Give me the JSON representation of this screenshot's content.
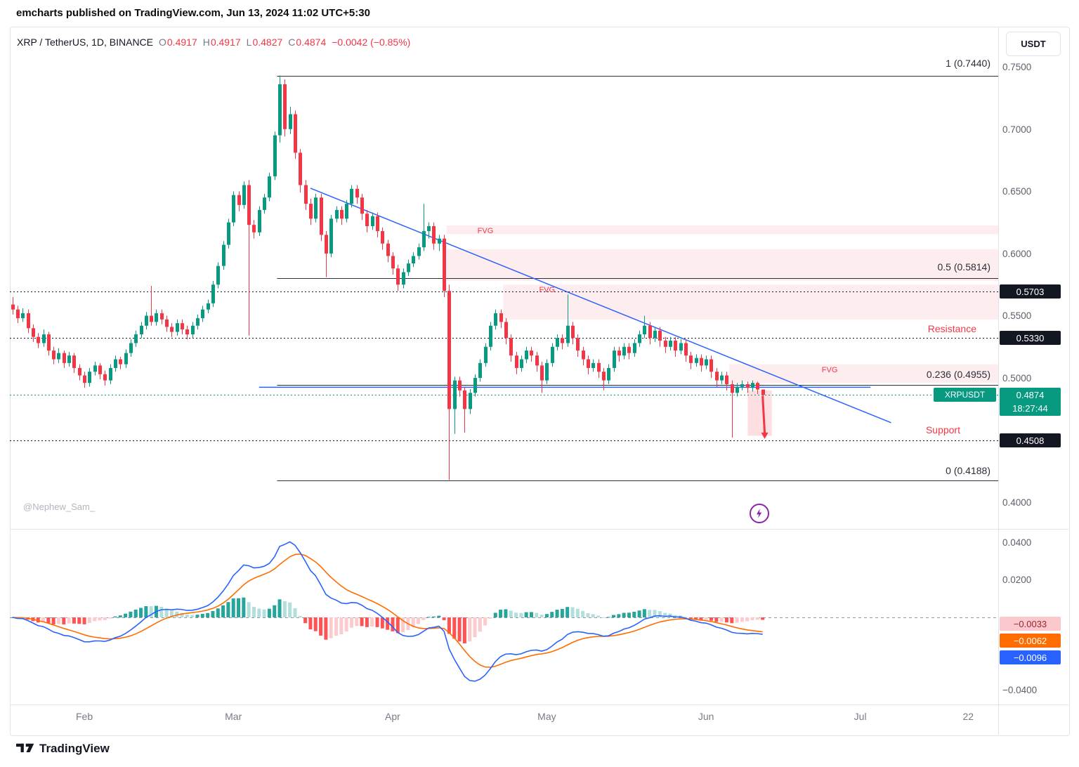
{
  "header": {
    "title": "emcharts published on TradingView.com, Jun 13, 2024 11:02 UTC+5:30"
  },
  "toolbar": {
    "symbol": "XRP / TetherUS, 1D, BINANCE",
    "ohlc": {
      "o_label": "O",
      "o": "0.4917",
      "h_label": "H",
      "h": "0.4917",
      "l_label": "L",
      "l": "0.4827",
      "c_label": "C",
      "c": "0.4874",
      "change": "−0.0042 (−0.85%)"
    },
    "currency_button": "USDT"
  },
  "price_axis": {
    "ticks": [
      {
        "label": "0.7500",
        "value": 0.75
      },
      {
        "label": "0.7000",
        "value": 0.7
      },
      {
        "label": "0.6500",
        "value": 0.65
      },
      {
        "label": "0.6000",
        "value": 0.6
      },
      {
        "label": "0.5500",
        "value": 0.55
      },
      {
        "label": "0.5000",
        "value": 0.5
      },
      {
        "label": "0.4000",
        "value": 0.4
      }
    ],
    "badges": [
      {
        "label": "0.5703",
        "value": 0.5703
      },
      {
        "label": "0.5330",
        "value": 0.533
      },
      {
        "label": "0.4508",
        "value": 0.4508
      }
    ],
    "last_price": {
      "symbol_tag": "XRPUSDT",
      "price": "0.4874",
      "countdown": "18:27:44"
    }
  },
  "macd_axis": {
    "ticks": [
      {
        "label": "0.0400",
        "value": 0.04
      },
      {
        "label": "0.0200",
        "value": 0.02
      },
      {
        "label": "−0.0400",
        "value": -0.04
      }
    ],
    "badges": {
      "hist": "−0.0033",
      "signal": "−0.0062",
      "macd": "−0.0096"
    }
  },
  "time_axis": {
    "labels": [
      {
        "text": "Feb",
        "index": 14
      },
      {
        "text": "Mar",
        "index": 43
      },
      {
        "text": "Apr",
        "index": 74
      },
      {
        "text": "May",
        "index": 104
      },
      {
        "text": "Jun",
        "index": 135
      },
      {
        "text": "Jul",
        "index": 165
      },
      {
        "text": "22",
        "index": 186
      }
    ]
  },
  "annotations": {
    "fib": [
      {
        "label": "1 (0.7440)",
        "price": 0.744
      },
      {
        "label": "0.5 (0.5814)",
        "price": 0.5814
      },
      {
        "label": "0.236 (0.4955)",
        "price": 0.4955
      },
      {
        "label": "0 (0.4188)",
        "price": 0.4188
      }
    ],
    "resistance": "Resistance",
    "support": "Support",
    "watermark": "@Nephew_Sam_"
  },
  "footer": {
    "logo_text": "TradingView"
  },
  "colors": {
    "up": "#089981",
    "down": "#f23645",
    "macd_line": "#2962ff",
    "signal_line": "#ff6d00",
    "hist_pos_strong": "#26a69a",
    "hist_pos_weak": "#b2dfdb",
    "hist_neg_strong": "#ff5252",
    "hist_neg_weak": "#fccbcd",
    "fvg_fill": "rgba(242,54,69,0.09)",
    "drop_zone_fill": "rgba(242,54,69,0.16)",
    "fib_line": "#2a2e39",
    "dotted_line": "#131722",
    "trend_line": "#2962ff",
    "zero_line": "#9598a1",
    "current_line": "#089981"
  },
  "chart_data": {
    "type": "candlestick",
    "symbol": "XRP/TetherUS",
    "exchange": "BINANCE",
    "interval": "1D",
    "price_range_visible": [
      0.38,
      0.757
    ],
    "macd_range_visible": [
      -0.046,
      0.046
    ],
    "candles": [
      [
        0.56,
        0.566,
        0.552,
        0.556
      ],
      [
        0.556,
        0.559,
        0.545,
        0.549
      ],
      [
        0.549,
        0.557,
        0.546,
        0.553
      ],
      [
        0.553,
        0.556,
        0.537,
        0.541
      ],
      [
        0.541,
        0.544,
        0.53,
        0.534
      ],
      [
        0.534,
        0.537,
        0.525,
        0.529
      ],
      [
        0.529,
        0.54,
        0.526,
        0.536
      ],
      [
        0.536,
        0.538,
        0.519,
        0.523
      ],
      [
        0.523,
        0.526,
        0.512,
        0.516
      ],
      [
        0.516,
        0.525,
        0.513,
        0.521
      ],
      [
        0.521,
        0.523,
        0.509,
        0.513
      ],
      [
        0.513,
        0.522,
        0.51,
        0.519
      ],
      [
        0.519,
        0.521,
        0.505,
        0.509
      ],
      [
        0.509,
        0.512,
        0.499,
        0.503
      ],
      [
        0.503,
        0.506,
        0.493,
        0.497
      ],
      [
        0.497,
        0.509,
        0.494,
        0.506
      ],
      [
        0.506,
        0.514,
        0.503,
        0.511
      ],
      [
        0.511,
        0.513,
        0.5,
        0.504
      ],
      [
        0.504,
        0.507,
        0.495,
        0.499
      ],
      [
        0.499,
        0.512,
        0.496,
        0.509
      ],
      [
        0.509,
        0.519,
        0.506,
        0.516
      ],
      [
        0.516,
        0.518,
        0.508,
        0.512
      ],
      [
        0.512,
        0.524,
        0.509,
        0.521
      ],
      [
        0.521,
        0.532,
        0.518,
        0.529
      ],
      [
        0.529,
        0.539,
        0.526,
        0.536
      ],
      [
        0.536,
        0.546,
        0.533,
        0.543
      ],
      [
        0.543,
        0.554,
        0.54,
        0.551
      ],
      [
        0.551,
        0.575,
        0.543,
        0.546
      ],
      [
        0.546,
        0.556,
        0.543,
        0.553
      ],
      [
        0.553,
        0.556,
        0.544,
        0.548
      ],
      [
        0.548,
        0.551,
        0.538,
        0.542
      ],
      [
        0.542,
        0.545,
        0.534,
        0.538
      ],
      [
        0.538,
        0.548,
        0.535,
        0.545
      ],
      [
        0.545,
        0.548,
        0.536,
        0.54
      ],
      [
        0.54,
        0.543,
        0.532,
        0.536
      ],
      [
        0.536,
        0.546,
        0.533,
        0.543
      ],
      [
        0.543,
        0.552,
        0.54,
        0.549
      ],
      [
        0.549,
        0.559,
        0.546,
        0.556
      ],
      [
        0.556,
        0.564,
        0.553,
        0.561
      ],
      [
        0.561,
        0.579,
        0.558,
        0.576
      ],
      [
        0.576,
        0.594,
        0.573,
        0.591
      ],
      [
        0.591,
        0.611,
        0.588,
        0.608
      ],
      [
        0.608,
        0.629,
        0.605,
        0.626
      ],
      [
        0.626,
        0.651,
        0.623,
        0.648
      ],
      [
        0.648,
        0.651,
        0.635,
        0.64
      ],
      [
        0.64,
        0.659,
        0.637,
        0.656
      ],
      [
        0.656,
        0.66,
        0.535,
        0.624
      ],
      [
        0.624,
        0.628,
        0.613,
        0.618
      ],
      [
        0.618,
        0.639,
        0.615,
        0.636
      ],
      [
        0.636,
        0.649,
        0.633,
        0.646
      ],
      [
        0.646,
        0.666,
        0.643,
        0.663
      ],
      [
        0.663,
        0.699,
        0.66,
        0.696
      ],
      [
        0.696,
        0.744,
        0.69,
        0.737
      ],
      [
        0.737,
        0.741,
        0.695,
        0.701
      ],
      [
        0.701,
        0.719,
        0.697,
        0.713
      ],
      [
        0.713,
        0.716,
        0.677,
        0.682
      ],
      [
        0.682,
        0.685,
        0.65,
        0.656
      ],
      [
        0.656,
        0.66,
        0.636,
        0.641
      ],
      [
        0.641,
        0.645,
        0.624,
        0.629
      ],
      [
        0.629,
        0.649,
        0.626,
        0.646
      ],
      [
        0.646,
        0.649,
        0.611,
        0.616
      ],
      [
        0.616,
        0.619,
        0.582,
        0.601
      ],
      [
        0.601,
        0.632,
        0.598,
        0.629
      ],
      [
        0.629,
        0.639,
        0.626,
        0.636
      ],
      [
        0.636,
        0.639,
        0.624,
        0.629
      ],
      [
        0.629,
        0.644,
        0.626,
        0.641
      ],
      [
        0.641,
        0.656,
        0.638,
        0.653
      ],
      [
        0.653,
        0.656,
        0.641,
        0.646
      ],
      [
        0.646,
        0.649,
        0.628,
        0.633
      ],
      [
        0.633,
        0.636,
        0.618,
        0.623
      ],
      [
        0.623,
        0.634,
        0.62,
        0.631
      ],
      [
        0.631,
        0.634,
        0.614,
        0.619
      ],
      [
        0.619,
        0.622,
        0.604,
        0.609
      ],
      [
        0.609,
        0.612,
        0.594,
        0.599
      ],
      [
        0.599,
        0.602,
        0.584,
        0.589
      ],
      [
        0.589,
        0.592,
        0.571,
        0.576
      ],
      [
        0.576,
        0.589,
        0.573,
        0.586
      ],
      [
        0.586,
        0.596,
        0.583,
        0.593
      ],
      [
        0.593,
        0.602,
        0.59,
        0.599
      ],
      [
        0.599,
        0.609,
        0.596,
        0.606
      ],
      [
        0.606,
        0.641,
        0.603,
        0.619
      ],
      [
        0.619,
        0.626,
        0.613,
        0.623
      ],
      [
        0.623,
        0.626,
        0.604,
        0.609
      ],
      [
        0.609,
        0.616,
        0.603,
        0.613
      ],
      [
        0.613,
        0.616,
        0.566,
        0.571
      ],
      [
        0.571,
        0.576,
        0.419,
        0.476
      ],
      [
        0.476,
        0.502,
        0.456,
        0.499
      ],
      [
        0.499,
        0.502,
        0.486,
        0.491
      ],
      [
        0.491,
        0.494,
        0.457,
        0.476
      ],
      [
        0.476,
        0.492,
        0.472,
        0.489
      ],
      [
        0.489,
        0.504,
        0.486,
        0.501
      ],
      [
        0.501,
        0.516,
        0.498,
        0.513
      ],
      [
        0.513,
        0.529,
        0.51,
        0.526
      ],
      [
        0.526,
        0.546,
        0.523,
        0.543
      ],
      [
        0.543,
        0.556,
        0.54,
        0.553
      ],
      [
        0.553,
        0.556,
        0.541,
        0.546
      ],
      [
        0.546,
        0.549,
        0.528,
        0.533
      ],
      [
        0.533,
        0.536,
        0.514,
        0.519
      ],
      [
        0.519,
        0.522,
        0.504,
        0.509
      ],
      [
        0.509,
        0.519,
        0.506,
        0.516
      ],
      [
        0.516,
        0.526,
        0.513,
        0.523
      ],
      [
        0.523,
        0.526,
        0.514,
        0.519
      ],
      [
        0.519,
        0.522,
        0.506,
        0.511
      ],
      [
        0.511,
        0.514,
        0.489,
        0.499
      ],
      [
        0.499,
        0.516,
        0.496,
        0.513
      ],
      [
        0.513,
        0.529,
        0.51,
        0.526
      ],
      [
        0.526,
        0.536,
        0.523,
        0.533
      ],
      [
        0.533,
        0.536,
        0.524,
        0.529
      ],
      [
        0.529,
        0.568,
        0.526,
        0.543
      ],
      [
        0.543,
        0.546,
        0.528,
        0.533
      ],
      [
        0.533,
        0.536,
        0.518,
        0.523
      ],
      [
        0.523,
        0.526,
        0.511,
        0.516
      ],
      [
        0.516,
        0.519,
        0.504,
        0.509
      ],
      [
        0.509,
        0.516,
        0.506,
        0.513
      ],
      [
        0.513,
        0.516,
        0.501,
        0.506
      ],
      [
        0.506,
        0.509,
        0.491,
        0.499
      ],
      [
        0.499,
        0.512,
        0.496,
        0.509
      ],
      [
        0.509,
        0.526,
        0.506,
        0.523
      ],
      [
        0.523,
        0.526,
        0.514,
        0.519
      ],
      [
        0.519,
        0.529,
        0.516,
        0.526
      ],
      [
        0.526,
        0.529,
        0.516,
        0.521
      ],
      [
        0.521,
        0.532,
        0.518,
        0.529
      ],
      [
        0.529,
        0.539,
        0.526,
        0.536
      ],
      [
        0.536,
        0.551,
        0.533,
        0.543
      ],
      [
        0.543,
        0.546,
        0.528,
        0.533
      ],
      [
        0.533,
        0.542,
        0.53,
        0.539
      ],
      [
        0.539,
        0.542,
        0.526,
        0.531
      ],
      [
        0.531,
        0.534,
        0.521,
        0.526
      ],
      [
        0.526,
        0.534,
        0.523,
        0.531
      ],
      [
        0.531,
        0.534,
        0.518,
        0.523
      ],
      [
        0.523,
        0.532,
        0.52,
        0.529
      ],
      [
        0.529,
        0.532,
        0.514,
        0.519
      ],
      [
        0.519,
        0.522,
        0.508,
        0.513
      ],
      [
        0.513,
        0.52,
        0.51,
        0.517
      ],
      [
        0.517,
        0.52,
        0.506,
        0.511
      ],
      [
        0.511,
        0.519,
        0.508,
        0.516
      ],
      [
        0.516,
        0.519,
        0.501,
        0.506
      ],
      [
        0.506,
        0.509,
        0.494,
        0.499
      ],
      [
        0.499,
        0.506,
        0.496,
        0.503
      ],
      [
        0.503,
        0.506,
        0.491,
        0.496
      ],
      [
        0.496,
        0.499,
        0.453,
        0.489
      ],
      [
        0.489,
        0.497,
        0.486,
        0.494
      ],
      [
        0.494,
        0.499,
        0.491,
        0.496
      ],
      [
        0.496,
        0.498,
        0.489,
        0.493
      ],
      [
        0.493,
        0.499,
        0.49,
        0.497
      ],
      [
        0.497,
        0.498,
        0.488,
        0.4917
      ],
      [
        0.4917,
        0.4917,
        0.4827,
        0.4874
      ]
    ],
    "overlays": {
      "fib_start_index": 52,
      "fib_levels": [
        {
          "label": "1 (0.7440)",
          "price": 0.744
        },
        {
          "label": "0.5 (0.5814)",
          "price": 0.5814
        },
        {
          "label": "0.236 (0.4955)",
          "price": 0.4955
        },
        {
          "label": "0 (0.4188)",
          "price": 0.4188
        }
      ],
      "dotted_levels": [
        {
          "price": 0.5703
        },
        {
          "price": 0.533
        },
        {
          "price": 0.4508
        }
      ],
      "current_price": 0.4874,
      "fvg_zones": [
        {
          "top": 0.6235,
          "bottom": 0.6165,
          "start_index": 85,
          "label": "FVG",
          "label_index": 91
        },
        {
          "top": 0.6045,
          "bottom": 0.579,
          "start_index": 85
        },
        {
          "top": 0.576,
          "bottom": 0.548,
          "start_index": 96,
          "label": "FVG",
          "label_index": 103
        },
        {
          "top": 0.512,
          "bottom": 0.497,
          "start_index": 140,
          "label": "FVG",
          "label_index": 158
        }
      ],
      "drop_zone": {
        "top": 0.491,
        "bottom": 0.4545,
        "start_index": 143.6,
        "end_index": 148.3
      },
      "trendline": {
        "from_index": 58,
        "from_price": 0.6535,
        "to_index": 171,
        "to_price": 0.465
      },
      "horizontal_line": {
        "price": 0.4935,
        "start_index": 48,
        "end_index": 167
      },
      "arrow": {
        "from_index": 146,
        "from_price": 0.4865,
        "to_index": 146.4,
        "to_price": 0.452
      }
    },
    "macd": {
      "fast": 12,
      "slow": 26,
      "signal": 9,
      "last_macd": -0.0096,
      "last_signal": -0.0062,
      "last_hist": -0.0033
    }
  }
}
